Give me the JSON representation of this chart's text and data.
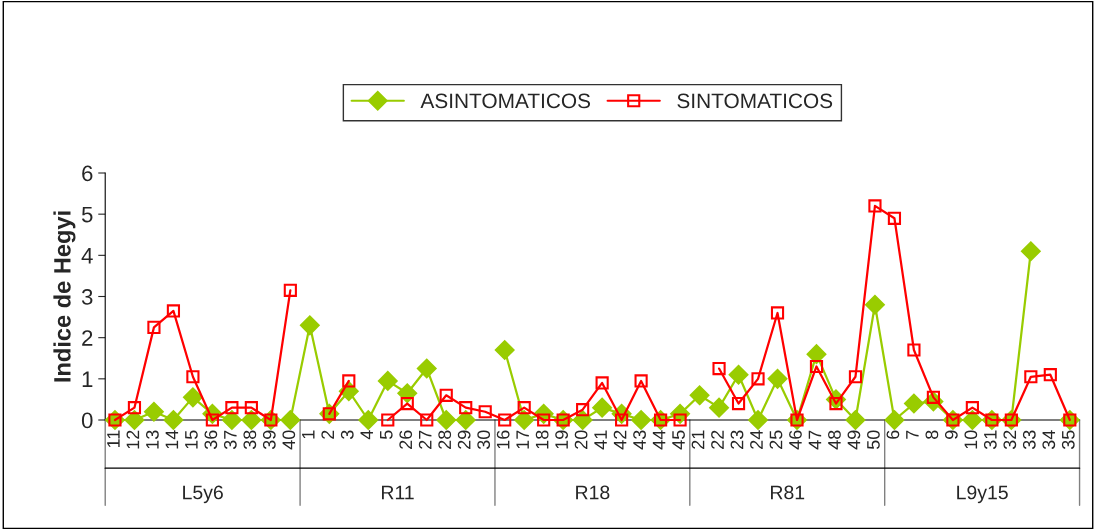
{
  "chart_data": {
    "type": "line",
    "categories": [
      "11",
      "12",
      "13",
      "14",
      "15",
      "36",
      "37",
      "38",
      "39",
      "40",
      "1",
      "2",
      "3",
      "4",
      "5",
      "26",
      "27",
      "28",
      "29",
      "30",
      "16",
      "17",
      "18",
      "19",
      "20",
      "41",
      "42",
      "43",
      "44",
      "45",
      "21",
      "22",
      "23",
      "24",
      "25",
      "46",
      "47",
      "48",
      "49",
      "50",
      "6",
      "7",
      "8",
      "9",
      "10",
      "31",
      "32",
      "33",
      "34",
      "35"
    ],
    "series": [
      {
        "name": "ASINTOMATICOS",
        "color": "#99cc00",
        "marker": "diamond",
        "values": [
          0,
          0,
          0.2,
          0,
          0.55,
          0.15,
          0,
          0,
          0,
          0,
          2.3,
          0.15,
          0.7,
          0,
          0.95,
          0.65,
          1.25,
          0,
          0,
          null,
          1.7,
          0,
          0.15,
          0,
          0,
          0.3,
          0.15,
          0,
          0,
          0.15,
          0.6,
          0.3,
          1.1,
          0,
          1.0,
          0,
          1.6,
          0.5,
          0,
          2.8,
          0,
          0.4,
          0.45,
          0,
          0,
          0,
          0,
          4.1,
          null,
          0
        ]
      },
      {
        "name": "SINTOMATICOS",
        "color": "#ff0000",
        "marker": "square",
        "values": [
          0,
          0.3,
          2.25,
          2.65,
          1.05,
          0,
          0.3,
          0.3,
          0,
          3.15,
          null,
          0.15,
          0.95,
          null,
          0,
          0.4,
          0,
          0.6,
          0.3,
          0.2,
          0,
          0.3,
          0,
          0,
          0.25,
          0.9,
          0,
          0.95,
          0,
          0,
          null,
          1.25,
          0.4,
          1.0,
          2.6,
          0,
          1.3,
          0.4,
          1.05,
          5.2,
          4.9,
          1.7,
          0.55,
          0,
          0.3,
          0,
          0,
          1.05,
          1.1,
          0
        ]
      }
    ],
    "ylabel": "Indice de Hegyi",
    "ylim": [
      0,
      6
    ],
    "yticks": [
      0,
      1,
      2,
      3,
      4,
      5,
      6
    ],
    "annotations": [
      "L5y6",
      "R11",
      "R18",
      "R81",
      "L9y15"
    ],
    "legend": "top",
    "grid": false
  }
}
